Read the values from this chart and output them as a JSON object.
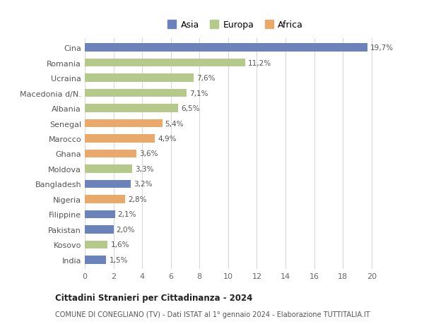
{
  "categories": [
    "Cina",
    "Romania",
    "Ucraina",
    "Macedonia d/N.",
    "Albania",
    "Senegal",
    "Marocco",
    "Ghana",
    "Moldova",
    "Bangladesh",
    "Nigeria",
    "Filippine",
    "Pakistan",
    "Kosovo",
    "India"
  ],
  "values": [
    19.7,
    11.2,
    7.6,
    7.1,
    6.5,
    5.4,
    4.9,
    3.6,
    3.3,
    3.2,
    2.8,
    2.1,
    2.0,
    1.6,
    1.5
  ],
  "labels": [
    "19,7%",
    "11,2%",
    "7,6%",
    "7,1%",
    "6,5%",
    "5,4%",
    "4,9%",
    "3,6%",
    "3,3%",
    "3,2%",
    "2,8%",
    "2,1%",
    "2,0%",
    "1,6%",
    "1,5%"
  ],
  "continents": [
    "Asia",
    "Europa",
    "Europa",
    "Europa",
    "Europa",
    "Africa",
    "Africa",
    "Africa",
    "Europa",
    "Asia",
    "Africa",
    "Asia",
    "Asia",
    "Europa",
    "Asia"
  ],
  "colors": {
    "Asia": "#6b83ba",
    "Europa": "#b5c98a",
    "Africa": "#e8a96a"
  },
  "legend_order": [
    "Asia",
    "Europa",
    "Africa"
  ],
  "xlim": [
    0,
    21
  ],
  "xticks": [
    0,
    2,
    4,
    6,
    8,
    10,
    12,
    14,
    16,
    18,
    20
  ],
  "title": "Cittadini Stranieri per Cittadinanza - 2024",
  "subtitle": "COMUNE DI CONEGLIANO (TV) - Dati ISTAT al 1° gennaio 2024 - Elaborazione TUTTITALIA.IT",
  "bg_color": "#ffffff",
  "grid_color": "#d8d8d8",
  "bar_height": 0.55
}
